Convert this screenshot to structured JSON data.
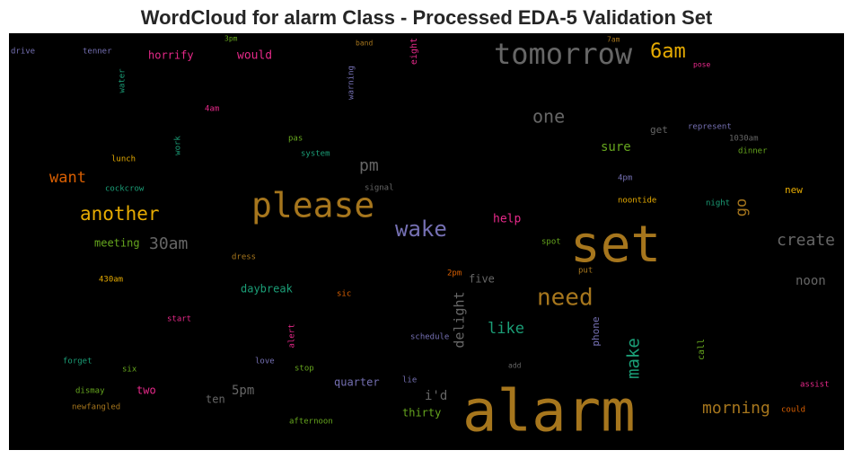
{
  "chart_data": {
    "type": "wordcloud",
    "title": "WordCloud for alarm Class - Processed EDA-5 Validation Set",
    "words": [
      {
        "text": "drive",
        "color": "#7570b3",
        "weight": 9
      },
      {
        "text": "tenner",
        "color": "#7570b3",
        "weight": 9
      },
      {
        "text": "3pm",
        "color": "#66a61e",
        "weight": 8
      },
      {
        "text": "band",
        "color": "#a6761d",
        "weight": 8
      },
      {
        "text": "eight",
        "color": "#e7298a",
        "weight": 10
      },
      {
        "text": "7am",
        "color": "#a6761d",
        "weight": 8
      },
      {
        "text": "tomorrow",
        "color": "#666666",
        "weight": 32
      },
      {
        "text": "6am",
        "color": "#e6ab02",
        "weight": 22
      },
      {
        "text": "horrify",
        "color": "#e7298a",
        "weight": 12
      },
      {
        "text": "would",
        "color": "#e7298a",
        "weight": 13
      },
      {
        "text": "water",
        "color": "#1b9e77",
        "weight": 9
      },
      {
        "text": "warning",
        "color": "#7570b3",
        "weight": 9
      },
      {
        "text": "pose",
        "color": "#e7298a",
        "weight": 8
      },
      {
        "text": "4am",
        "color": "#e7298a",
        "weight": 9
      },
      {
        "text": "one",
        "color": "#666666",
        "weight": 20
      },
      {
        "text": "get",
        "color": "#666666",
        "weight": 11
      },
      {
        "text": "represent",
        "color": "#7570b3",
        "weight": 9
      },
      {
        "text": "1030am",
        "color": "#666666",
        "weight": 9
      },
      {
        "text": "pas",
        "color": "#66a61e",
        "weight": 9
      },
      {
        "text": "work",
        "color": "#1b9e77",
        "weight": 9
      },
      {
        "text": "system",
        "color": "#1b9e77",
        "weight": 9
      },
      {
        "text": "sure",
        "color": "#66a61e",
        "weight": 14
      },
      {
        "text": "dinner",
        "color": "#66a61e",
        "weight": 9
      },
      {
        "text": "lunch",
        "color": "#e6ab02",
        "weight": 9
      },
      {
        "text": "pm",
        "color": "#666666",
        "weight": 18
      },
      {
        "text": "4pm",
        "color": "#7570b3",
        "weight": 9
      },
      {
        "text": "want",
        "color": "#d95f02",
        "weight": 17
      },
      {
        "text": "cockcrow",
        "color": "#1b9e77",
        "weight": 9
      },
      {
        "text": "signal",
        "color": "#666666",
        "weight": 9
      },
      {
        "text": "new",
        "color": "#e6ab02",
        "weight": 11
      },
      {
        "text": "please",
        "color": "#a6761d",
        "weight": 38
      },
      {
        "text": "noontide",
        "color": "#e6ab02",
        "weight": 9
      },
      {
        "text": "night",
        "color": "#1b9e77",
        "weight": 9
      },
      {
        "text": "go",
        "color": "#a6761d",
        "weight": 17
      },
      {
        "text": "another",
        "color": "#e6ab02",
        "weight": 21
      },
      {
        "text": "wake",
        "color": "#7570b3",
        "weight": 24
      },
      {
        "text": "help",
        "color": "#e7298a",
        "weight": 13
      },
      {
        "text": "set",
        "color": "#a6761d",
        "weight": 56
      },
      {
        "text": "create",
        "color": "#666666",
        "weight": 18
      },
      {
        "text": "meeting",
        "color": "#66a61e",
        "weight": 12
      },
      {
        "text": "30am",
        "color": "#666666",
        "weight": 18
      },
      {
        "text": "spot",
        "color": "#66a61e",
        "weight": 9
      },
      {
        "text": "dress",
        "color": "#a6761d",
        "weight": 9
      },
      {
        "text": "430am",
        "color": "#e6ab02",
        "weight": 9
      },
      {
        "text": "2pm",
        "color": "#d95f02",
        "weight": 9
      },
      {
        "text": "put",
        "color": "#a6761d",
        "weight": 9
      },
      {
        "text": "five",
        "color": "#666666",
        "weight": 12
      },
      {
        "text": "noon",
        "color": "#666666",
        "weight": 14
      },
      {
        "text": "daybreak",
        "color": "#1b9e77",
        "weight": 12
      },
      {
        "text": "need",
        "color": "#a6761d",
        "weight": 26
      },
      {
        "text": "sic",
        "color": "#d95f02",
        "weight": 9
      },
      {
        "text": "delight",
        "color": "#666666",
        "weight": 15
      },
      {
        "text": "start",
        "color": "#e7298a",
        "weight": 9
      },
      {
        "text": "like",
        "color": "#1b9e77",
        "weight": 17
      },
      {
        "text": "phone",
        "color": "#7570b3",
        "weight": 11
      },
      {
        "text": "schedule",
        "color": "#7570b3",
        "weight": 9
      },
      {
        "text": "alert",
        "color": "#e7298a",
        "weight": 9
      },
      {
        "text": "make",
        "color": "#1b9e77",
        "weight": 19
      },
      {
        "text": "call",
        "color": "#66a61e",
        "weight": 10
      },
      {
        "text": "forget",
        "color": "#1b9e77",
        "weight": 9
      },
      {
        "text": "six",
        "color": "#66a61e",
        "weight": 9
      },
      {
        "text": "love",
        "color": "#7570b3",
        "weight": 9
      },
      {
        "text": "stop",
        "color": "#66a61e",
        "weight": 9
      },
      {
        "text": "add",
        "color": "#666666",
        "weight": 8
      },
      {
        "text": "lie",
        "color": "#7570b3",
        "weight": 9
      },
      {
        "text": "quarter",
        "color": "#7570b3",
        "weight": 12
      },
      {
        "text": "assist",
        "color": "#e7298a",
        "weight": 9
      },
      {
        "text": "dismay",
        "color": "#66a61e",
        "weight": 9
      },
      {
        "text": "two",
        "color": "#e7298a",
        "weight": 12
      },
      {
        "text": "5pm",
        "color": "#666666",
        "weight": 14
      },
      {
        "text": "i'd",
        "color": "#666666",
        "weight": 14
      },
      {
        "text": "ten",
        "color": "#666666",
        "weight": 12
      },
      {
        "text": "alarm",
        "color": "#a6761d",
        "weight": 64
      },
      {
        "text": "newfangled",
        "color": "#a6761d",
        "weight": 9
      },
      {
        "text": "morning",
        "color": "#a6761d",
        "weight": 18
      },
      {
        "text": "could",
        "color": "#d95f02",
        "weight": 9
      },
      {
        "text": "thirty",
        "color": "#66a61e",
        "weight": 12
      },
      {
        "text": "afternoon",
        "color": "#66a61e",
        "weight": 9
      }
    ]
  }
}
